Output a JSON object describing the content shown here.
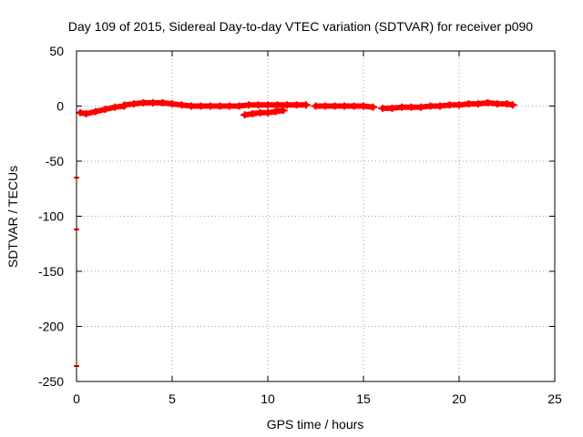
{
  "chart_data": {
    "type": "scatter",
    "title": "Day 109 of 2015, Sidereal Day-to-day VTEC variation (SDTVAR) for receiver p090",
    "xlabel": "GPS time / hours",
    "ylabel": "SDTVAR / TECUs",
    "xlim": [
      0,
      25
    ],
    "ylim": [
      -250,
      50
    ],
    "xticks": [
      0,
      5,
      10,
      15,
      20,
      25
    ],
    "yticks": [
      -250,
      -200,
      -150,
      -100,
      -50,
      0,
      50
    ],
    "grid": true,
    "marker_color": "#ff0000",
    "series": [
      {
        "name": "SDTVAR",
        "segments": [
          {
            "x": [
              0.2,
              0.5,
              1.0,
              1.5,
              2.0,
              2.5
            ],
            "y": [
              -6,
              -7,
              -5,
              -3,
              -1,
              0
            ]
          },
          {
            "x": [
              2.5,
              3.0,
              3.5,
              4.0,
              4.5,
              5.0,
              5.5,
              6.0,
              6.5,
              7.0,
              7.5,
              8.0,
              8.5,
              9.0,
              9.5,
              10.0,
              10.5,
              11.0,
              11.5,
              12.0
            ],
            "y": [
              1,
              2,
              3,
              3,
              3,
              2,
              1,
              0,
              0,
              0,
              0,
              0,
              0,
              1,
              1,
              1,
              1,
              1,
              1,
              1
            ]
          },
          {
            "x": [
              8.8,
              9.2,
              9.6,
              10.0,
              10.4,
              10.8
            ],
            "y": [
              -8,
              -7,
              -6,
              -6,
              -5,
              -4
            ]
          },
          {
            "x": [
              12.5,
              13.0,
              13.5,
              14.0,
              14.5,
              15.0,
              15.5
            ],
            "y": [
              0,
              0,
              0,
              0,
              0,
              0,
              -1
            ]
          },
          {
            "x": [
              16.0,
              16.5,
              17.0,
              17.5,
              18.0,
              18.5,
              19.0,
              19.5,
              20.0,
              20.5,
              21.0,
              21.5,
              22.0,
              22.5,
              22.8
            ],
            "y": [
              -2,
              -2,
              -1,
              -1,
              -1,
              0,
              0,
              1,
              1,
              2,
              2,
              3,
              2,
              2,
              1
            ]
          }
        ],
        "outliers": {
          "x": [
            0.0,
            0.0,
            0.0
          ],
          "y": [
            -65,
            -112,
            -236
          ]
        }
      }
    ]
  }
}
